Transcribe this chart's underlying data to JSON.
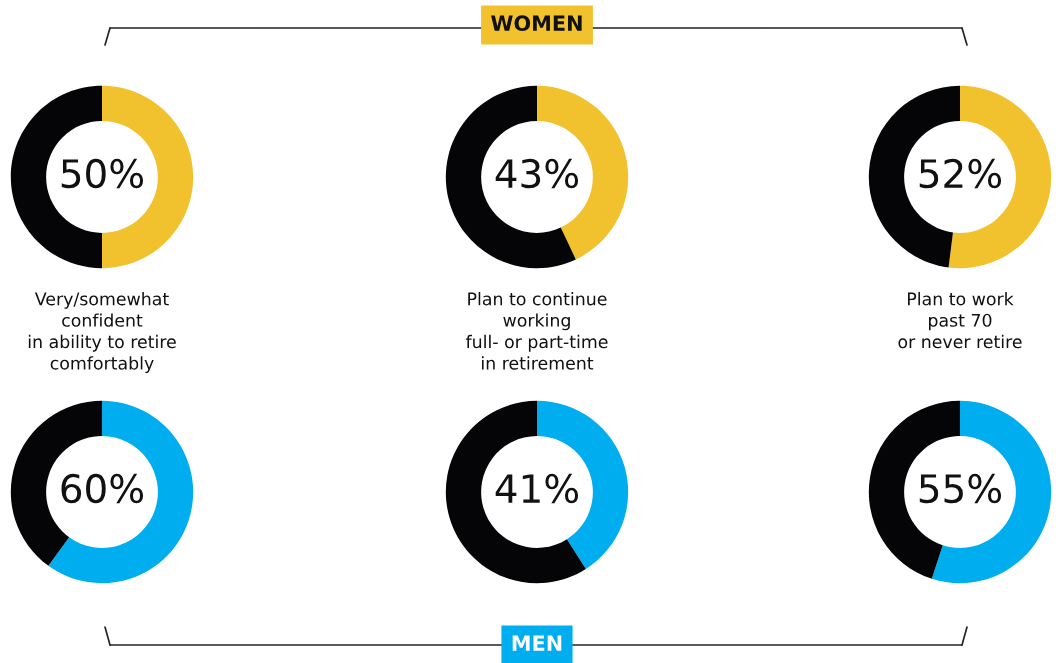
{
  "chart_data": [
    {
      "type": "donut",
      "categories": [
        null,
        null
      ],
      "values": [
        50,
        50
      ],
      "colors": [
        "#f2c12e",
        "#050508"
      ],
      "value_labels": [
        "50%",
        null
      ],
      "annotations": [
        "Very/somewhat\nconfident\nin ability to retire\ncomfortably"
      ]
    },
    {
      "type": "donut",
      "title": "WOMEN",
      "categories": [
        null,
        null
      ],
      "values": [
        43,
        57
      ],
      "colors": [
        "#f2c12e",
        "#050508"
      ],
      "value_labels": [
        "43%",
        null
      ],
      "annotations": [
        "Plan to continue\nworking\nfull- or part-time\nin retirement"
      ]
    },
    {
      "type": "donut",
      "categories": [
        null,
        null
      ],
      "values": [
        52,
        48
      ],
      "colors": [
        "#f2c12e",
        "#050508"
      ],
      "value_labels": [
        "52%",
        null
      ],
      "annotations": [
        "Plan to work\npast 70\nor never retire"
      ]
    },
    {
      "type": "donut",
      "categories": [
        null,
        null
      ],
      "values": [
        60,
        40
      ],
      "colors": [
        "#00aeef",
        "#050508"
      ],
      "value_labels": [
        "60%",
        null
      ]
    },
    {
      "type": "donut",
      "title": "MEN",
      "categories": [
        null,
        null
      ],
      "values": [
        41,
        59
      ],
      "colors": [
        "#00aeef",
        "#050508"
      ],
      "value_labels": [
        "41%",
        null
      ]
    },
    {
      "type": "donut",
      "categories": [
        null,
        null
      ],
      "values": [
        55,
        45
      ],
      "colors": [
        "#00aeef",
        "#050508"
      ],
      "value_labels": [
        "55%",
        null
      ]
    }
  ]
}
